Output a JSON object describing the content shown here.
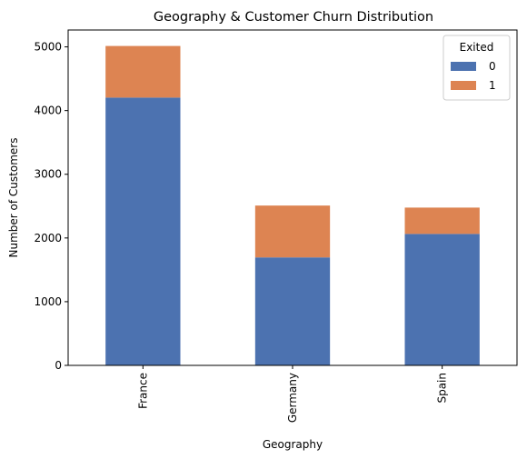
{
  "chart_data": {
    "type": "bar",
    "stacked": true,
    "title": "Geography & Customer Churn Distribution",
    "xlabel": "Geography",
    "ylabel": "Number of Customers",
    "categories": [
      "France",
      "Germany",
      "Spain"
    ],
    "series": [
      {
        "name": "0",
        "values": [
          4204,
          1695,
          2064
        ],
        "color": "#4c72b0"
      },
      {
        "name": "1",
        "values": [
          810,
          814,
          413
        ],
        "color": "#dd8452"
      }
    ],
    "yticks": [
      0,
      1000,
      2000,
      3000,
      4000,
      5000
    ],
    "ylim": [
      0,
      5265
    ],
    "legend": {
      "title": "Exited",
      "position": "top-right"
    },
    "grid": false
  }
}
